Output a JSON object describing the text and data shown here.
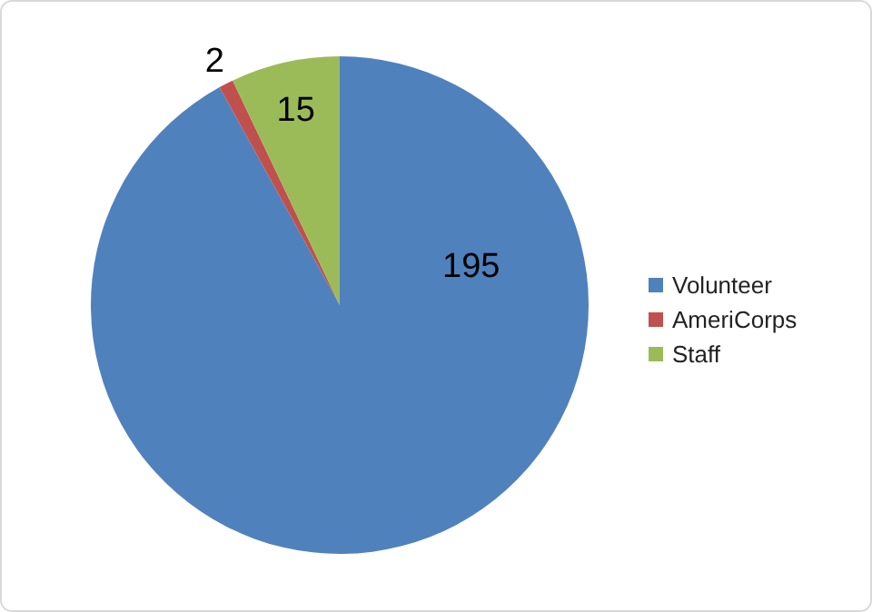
{
  "chart_data": {
    "type": "pie",
    "categories": [
      "Volunteer",
      "AmeriCorps",
      "Staff"
    ],
    "values": [
      195,
      2,
      15
    ],
    "colors": [
      "#4f81bd",
      "#c0504d",
      "#9bbb59"
    ],
    "data_labels": true,
    "legend": "right"
  }
}
